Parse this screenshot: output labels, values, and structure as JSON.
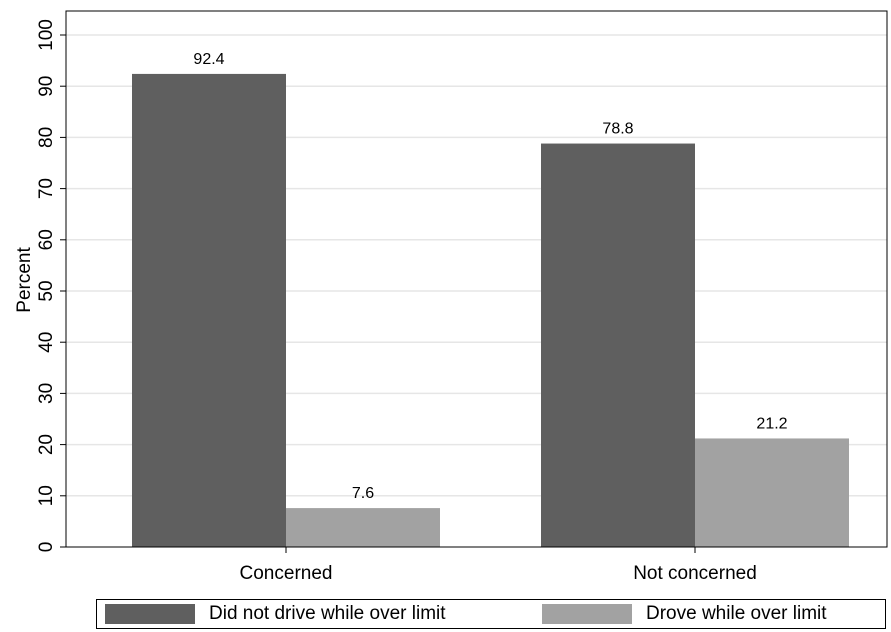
{
  "chart_data": {
    "type": "bar",
    "categories": [
      "Concerned",
      "Not concerned"
    ],
    "series": [
      {
        "name": "Did not drive while over limit",
        "values": [
          92.4,
          78.8
        ],
        "color": "#5f5f5f"
      },
      {
        "name": "Drove while over limit",
        "values": [
          7.6,
          21.2
        ],
        "color": "#a2a2a2"
      }
    ],
    "data_labels": [
      [
        "92.4",
        "78.8"
      ],
      [
        "7.6",
        "21.2"
      ]
    ],
    "ylabel": "Percent",
    "xlabel": "",
    "ylim": [
      0,
      100
    ],
    "yticks": [
      0,
      10,
      20,
      30,
      40,
      50,
      60,
      70,
      80,
      90,
      100
    ],
    "grid": true,
    "legend_position": "bottom"
  }
}
